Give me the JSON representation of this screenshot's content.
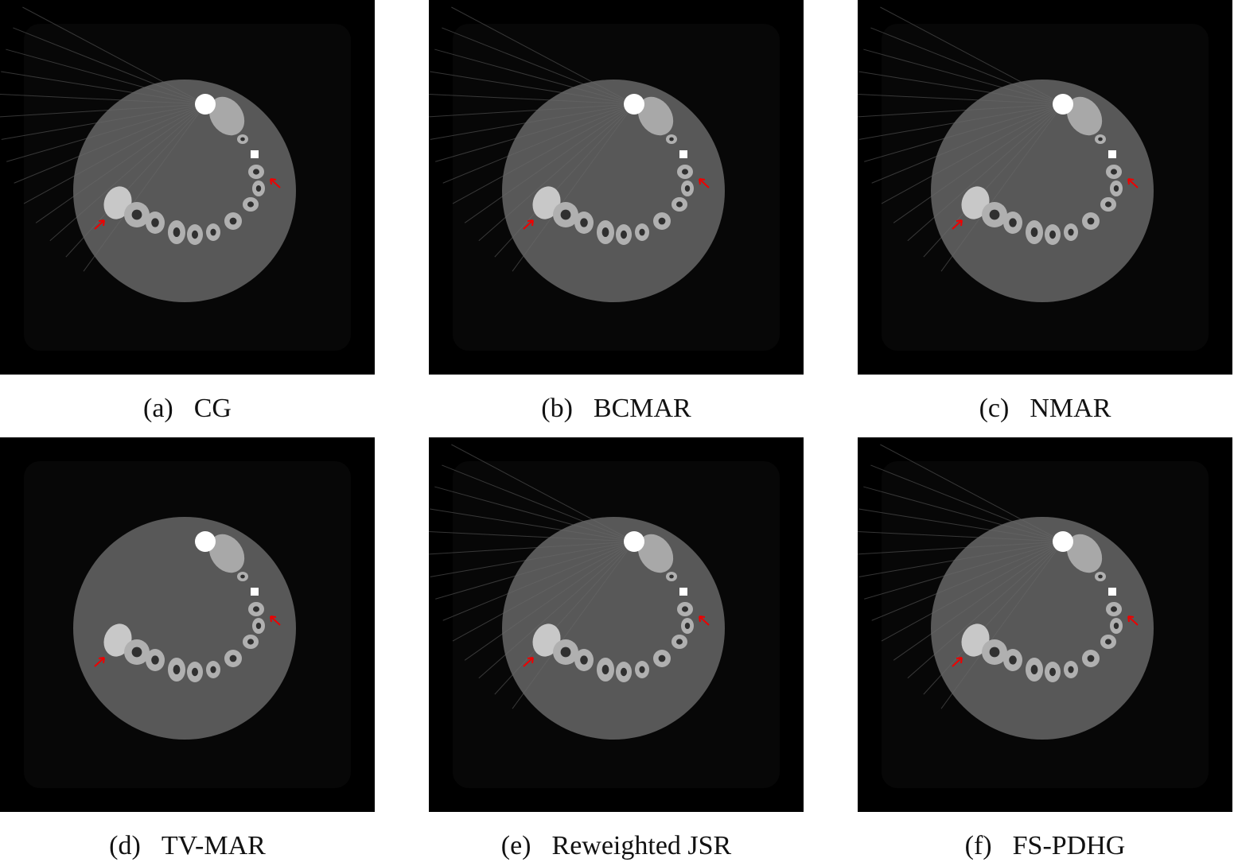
{
  "panels": [
    {
      "label": "(a)",
      "method": "CG"
    },
    {
      "label": "(b)",
      "method": "BCMAR"
    },
    {
      "label": "(c)",
      "method": "NMAR"
    },
    {
      "label": "(d)",
      "method": "TV-MAR"
    },
    {
      "label": "(e)",
      "method": "Reweighted JSR"
    },
    {
      "label": "(f)",
      "method": "FS-PDHG"
    }
  ]
}
